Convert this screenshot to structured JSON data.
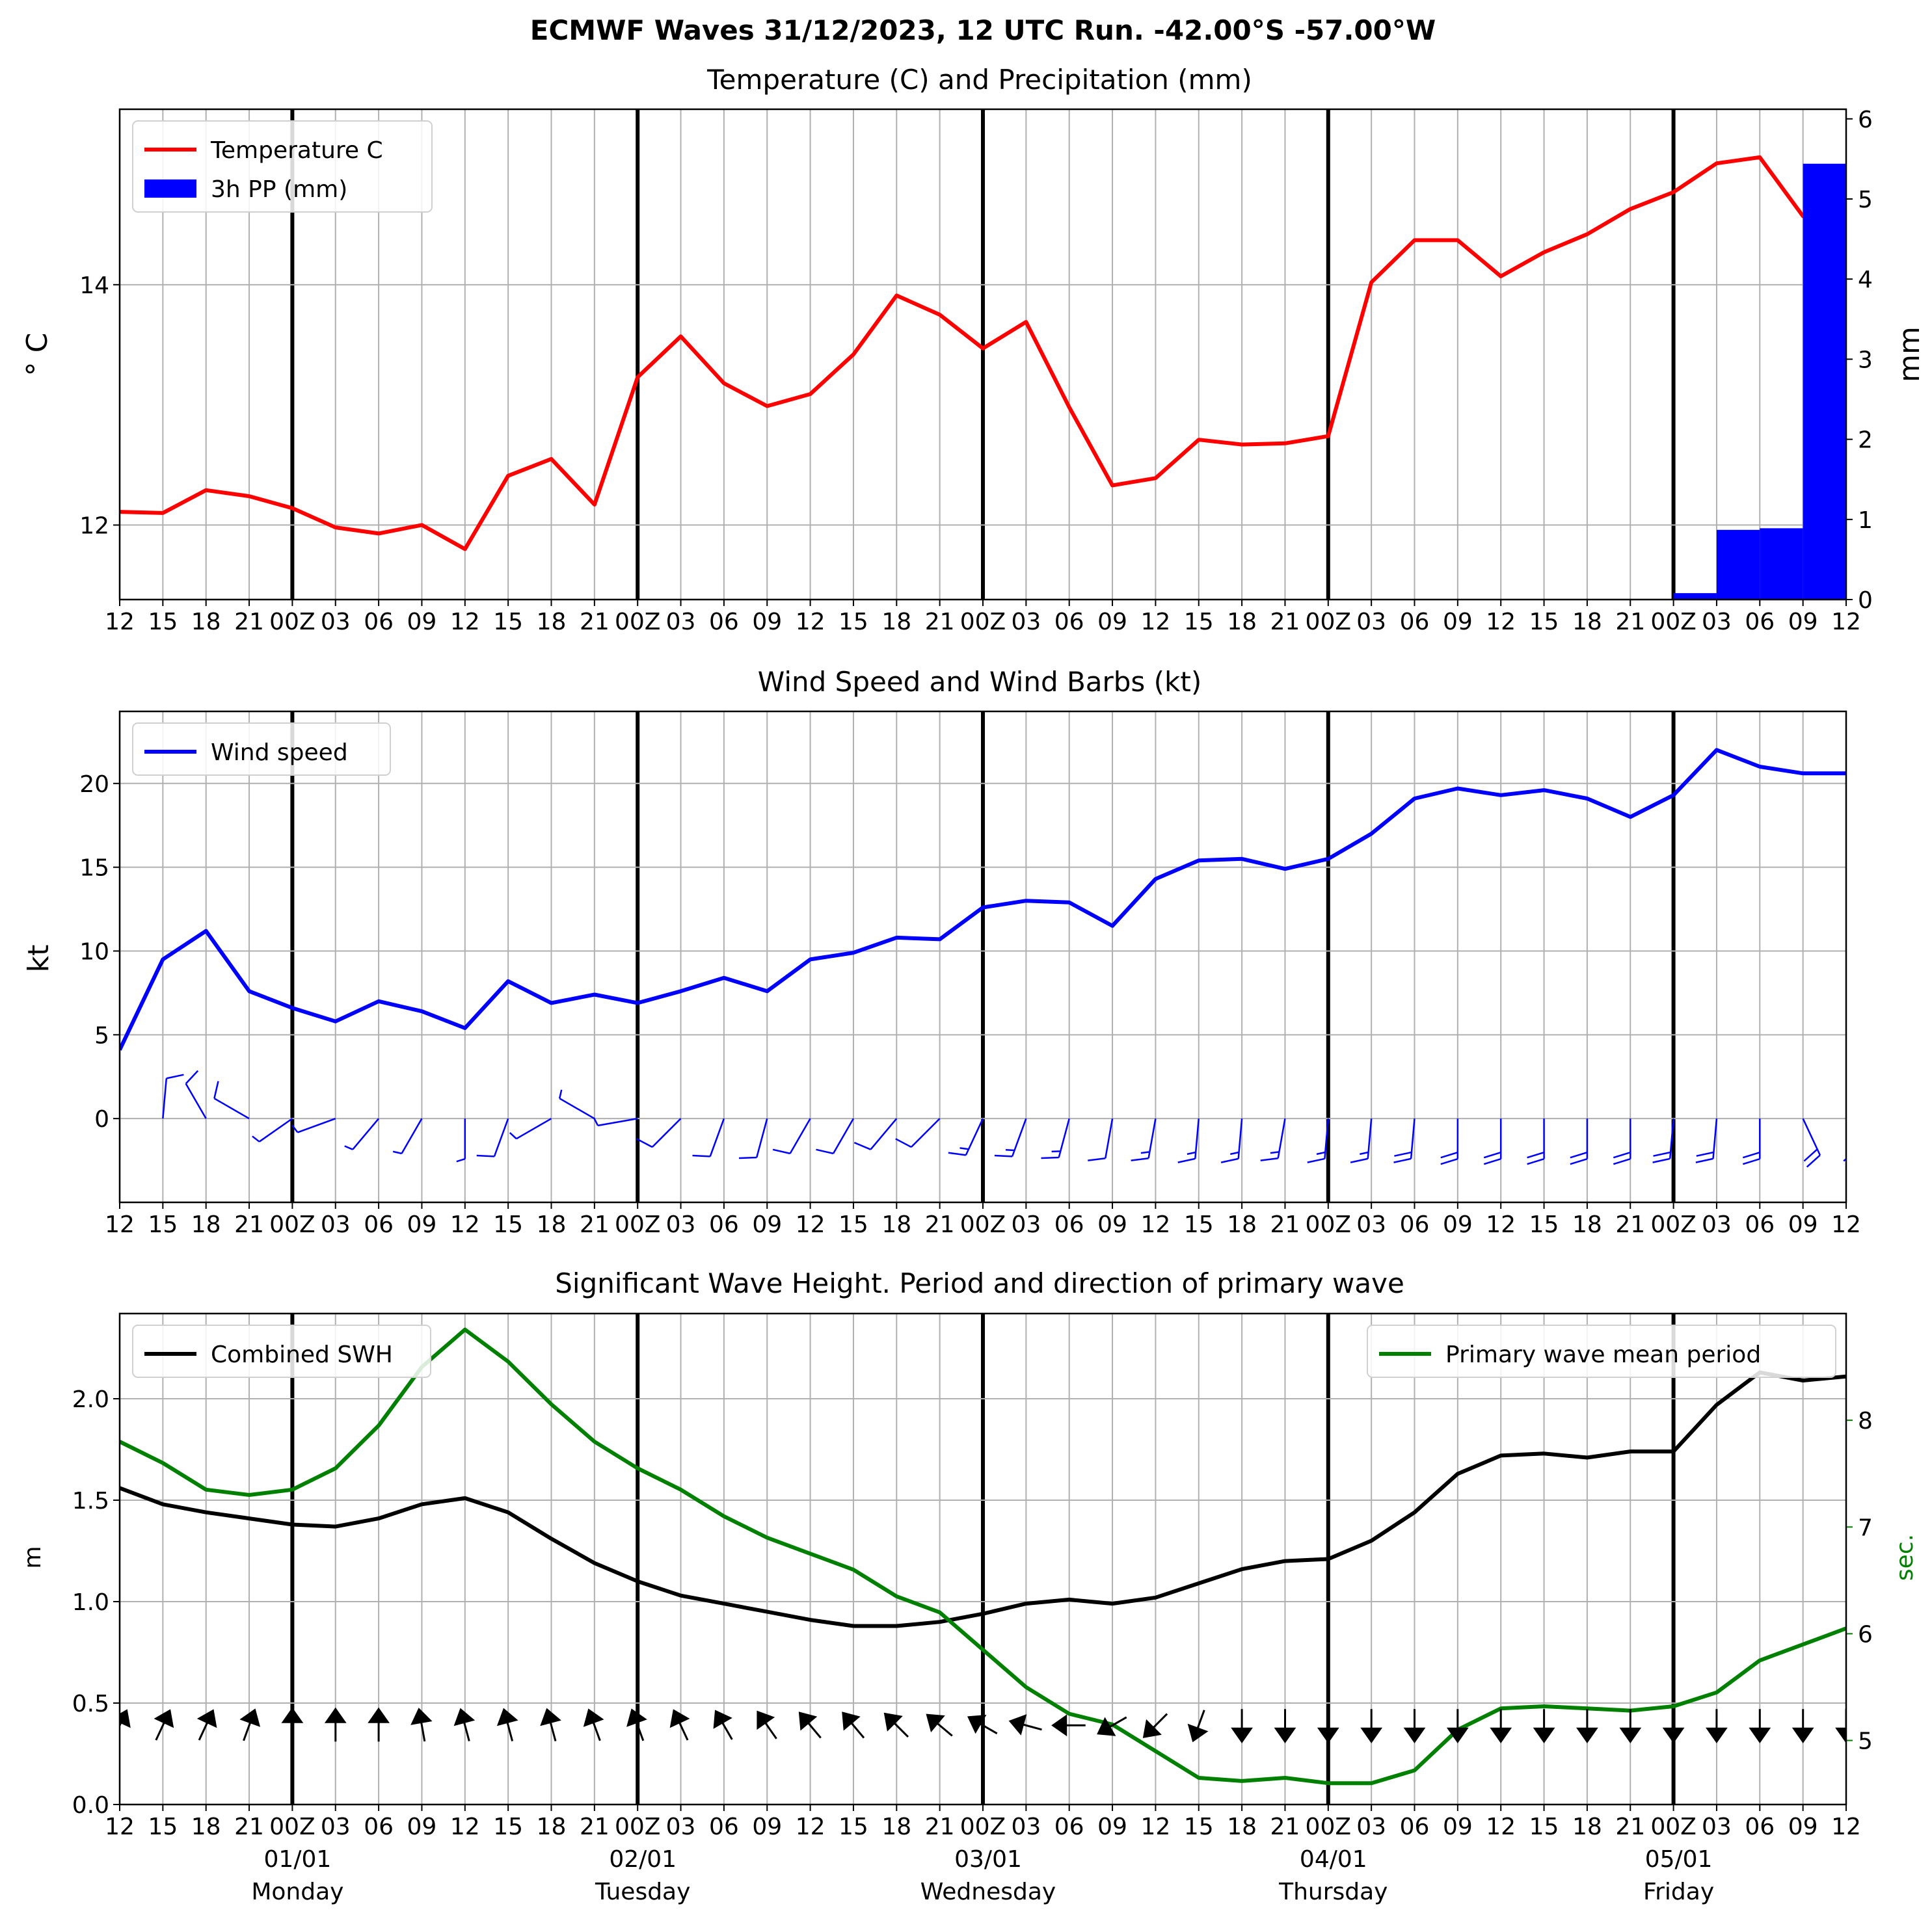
{
  "figure": {
    "suptitle": "ECMWF Waves 31/12/2023, 12 UTC Run. -42.00°S -57.00°W"
  },
  "x_tick_labels": [
    "12",
    "15",
    "18",
    "21",
    "00Z",
    "03",
    "06",
    "09",
    "12",
    "15",
    "18",
    "21",
    "00Z",
    "03",
    "06",
    "09",
    "12",
    "15",
    "18",
    "21",
    "00Z",
    "03",
    "06",
    "09",
    "12",
    "15",
    "18",
    "21",
    "00Z",
    "03",
    "06",
    "09",
    "12",
    "15",
    "18",
    "21",
    "00Z",
    "03",
    "06",
    "09",
    "12"
  ],
  "day_labels": [
    {
      "index": 4,
      "date": "01/01",
      "day": "Monday"
    },
    {
      "index": 12,
      "date": "02/01",
      "day": "Tuesday"
    },
    {
      "index": 20,
      "date": "03/01",
      "day": "Wednesday"
    },
    {
      "index": 28,
      "date": "04/01",
      "day": "Thursday"
    },
    {
      "index": 36,
      "date": "05/01",
      "day": "Friday"
    }
  ],
  "chart_data": [
    {
      "type": "line",
      "title": "Temperature (C) and Precipitation (mm)",
      "ylabel": "° C",
      "y2label": "mm",
      "ylim": [
        11.38,
        15.46
      ],
      "y2lim": [
        0,
        6.12
      ],
      "yticks": [
        12,
        14
      ],
      "y2ticks": [
        0,
        1,
        2,
        3,
        4,
        5,
        6
      ],
      "grid": true,
      "legend": "top-left",
      "series": [
        {
          "name": "Temperature C",
          "color": "#ff0000",
          "kind": "line",
          "axis": "left",
          "values": [
            12.11,
            12.1,
            12.29,
            12.24,
            12.14,
            11.98,
            11.93,
            12.0,
            11.8,
            12.41,
            12.55,
            12.17,
            13.23,
            13.57,
            13.18,
            12.99,
            13.09,
            13.42,
            13.91,
            13.75,
            13.47,
            13.69,
            12.98,
            12.33,
            12.39,
            12.71,
            12.67,
            12.68,
            12.74,
            14.02,
            14.37,
            14.37,
            14.07,
            14.27,
            14.42,
            14.63,
            14.77,
            15.01,
            15.06,
            14.57,
            14.74
          ]
        },
        {
          "name": "3h PP (mm)",
          "color": "#0000ff",
          "kind": "bar",
          "axis": "right",
          "values": [
            0,
            0,
            0,
            0,
            0,
            0,
            0,
            0,
            0,
            0,
            0,
            0,
            0,
            0,
            0,
            0,
            0,
            0,
            0,
            0,
            0,
            0,
            0,
            0,
            0,
            0,
            0,
            0,
            0,
            0,
            0,
            0,
            0,
            0,
            0,
            0,
            0.08,
            0.87,
            0.89,
            5.44
          ]
        }
      ]
    },
    {
      "type": "line",
      "title": "Wind Speed and Wind Barbs (kt)",
      "ylabel": "kt",
      "ylim": [
        -5,
        24.3
      ],
      "yticks": [
        0,
        5,
        10,
        15,
        20
      ],
      "grid": true,
      "legend": "top-left",
      "series": [
        {
          "name": "Wind speed",
          "color": "#0000ff",
          "values": [
            4.1,
            9.5,
            11.2,
            7.6,
            6.6,
            5.8,
            7.0,
            6.4,
            5.4,
            8.2,
            6.9,
            7.4,
            6.9,
            7.6,
            8.4,
            7.6,
            9.5,
            9.9,
            10.8,
            10.7,
            12.6,
            13.0,
            12.9,
            11.5,
            14.3,
            15.4,
            15.5,
            14.9,
            15.5,
            17.0,
            19.1,
            19.7,
            19.3,
            19.6,
            19.1,
            18.0,
            19.3,
            22.0,
            21.0,
            20.6,
            20.6
          ]
        }
      ],
      "barbs_from_deg": [
        245,
        5,
        330,
        300,
        235,
        250,
        220,
        210,
        180,
        200,
        240,
        300,
        260,
        225,
        200,
        195,
        210,
        210,
        220,
        225,
        205,
        200,
        195,
        190,
        190,
        185,
        185,
        190,
        185,
        185,
        185,
        180,
        180,
        180,
        180,
        180,
        185,
        185,
        180,
        155,
        160
      ]
    },
    {
      "type": "line",
      "title": "Significant Wave Height. Period and direction of primary wave",
      "ylabel": "m",
      "y2label": "sec.",
      "ylim": [
        0,
        2.42
      ],
      "y2lim": [
        4.4,
        9.0
      ],
      "yticks": [
        0.0,
        0.5,
        1.0,
        1.5,
        2.0
      ],
      "y2ticks": [
        5,
        6,
        7,
        8
      ],
      "grid": true,
      "legend": "top-left and top-right",
      "series": [
        {
          "name": "Combined SWH",
          "color": "#000000",
          "axis": "left",
          "values": [
            1.56,
            1.48,
            1.44,
            1.41,
            1.38,
            1.37,
            1.41,
            1.48,
            1.51,
            1.44,
            1.31,
            1.19,
            1.1,
            1.03,
            0.99,
            0.95,
            0.91,
            0.88,
            0.88,
            0.9,
            0.94,
            0.99,
            1.01,
            0.99,
            1.02,
            1.09,
            1.16,
            1.2,
            1.21,
            1.3,
            1.44,
            1.63,
            1.72,
            1.73,
            1.71,
            1.74,
            1.74,
            1.97,
            2.13,
            2.09,
            2.11
          ]
        },
        {
          "name": "Primary wave mean period",
          "color": "#008000",
          "axis": "right",
          "values": [
            7.8,
            7.6,
            7.35,
            7.3,
            7.35,
            7.55,
            7.95,
            8.5,
            8.85,
            8.55,
            8.15,
            7.8,
            7.55,
            7.35,
            7.1,
            6.9,
            6.75,
            6.6,
            6.35,
            6.2,
            5.85,
            5.5,
            5.25,
            5.15,
            4.9,
            4.65,
            4.62,
            4.65,
            4.6,
            4.6,
            4.72,
            5.1,
            5.3,
            5.32,
            5.3,
            5.28,
            5.32,
            5.45,
            5.75,
            5.9,
            6.05
          ]
        }
      ],
      "direction_arrows_to_deg": [
        25,
        25,
        25,
        20,
        0,
        0,
        0,
        350,
        345,
        345,
        345,
        340,
        340,
        335,
        330,
        325,
        320,
        320,
        315,
        310,
        300,
        285,
        270,
        240,
        225,
        200,
        180,
        180,
        180,
        180,
        180,
        180,
        180,
        180,
        180,
        180,
        180,
        180,
        180,
        180,
        180
      ]
    }
  ]
}
